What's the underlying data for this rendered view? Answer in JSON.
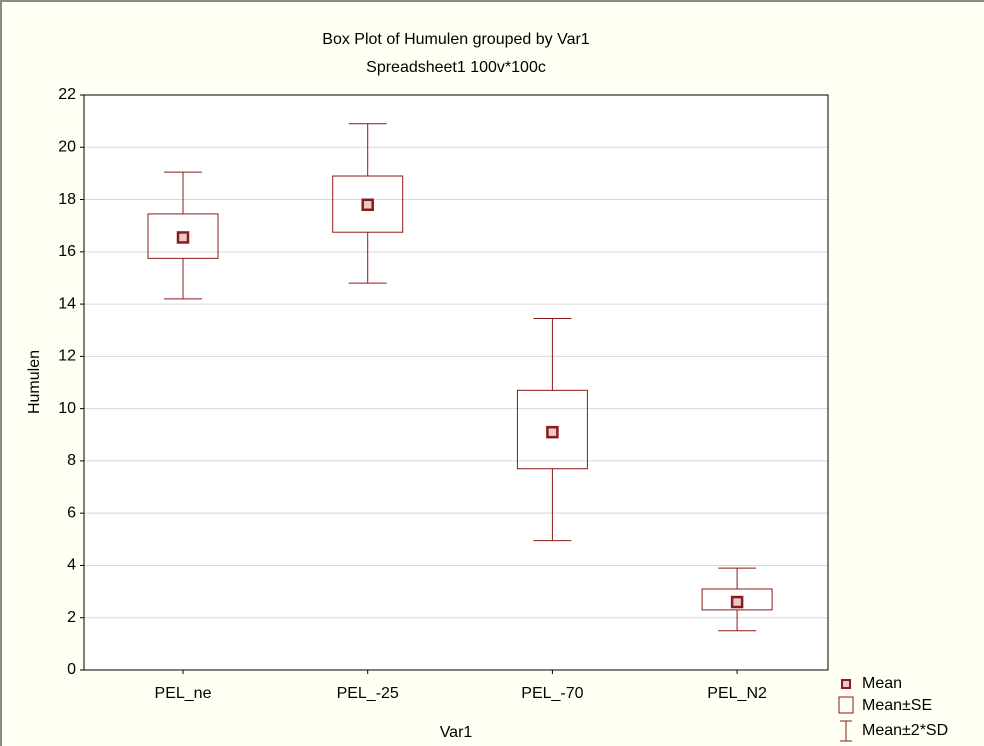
{
  "chart_data": {
    "type": "box",
    "title": "Box Plot of Humulen grouped by  Var1",
    "subtitle": "Spreadsheet1 100v*100c",
    "x_label": "Var1",
    "y_label": "Humulen",
    "categories": [
      "PEL_ne",
      "PEL_-25",
      "PEL_-70",
      "PEL_N2"
    ],
    "mean": [
      16.55,
      17.8,
      9.1,
      2.6
    ],
    "se_lower": [
      15.75,
      16.75,
      7.7,
      2.3
    ],
    "se_upper": [
      17.45,
      18.9,
      10.7,
      3.1
    ],
    "sd2_lower": [
      14.2,
      14.8,
      4.95,
      1.5
    ],
    "sd2_upper": [
      19.05,
      20.9,
      13.45,
      3.9
    ],
    "legend": [
      "Mean",
      "Mean±SE",
      "Mean±2*SD"
    ],
    "color": "#8b1a1a",
    "ylim": [
      0,
      22
    ],
    "yticks": [
      0,
      2,
      4,
      6,
      8,
      10,
      12,
      14,
      16,
      18,
      20,
      22
    ],
    "grid": true
  }
}
